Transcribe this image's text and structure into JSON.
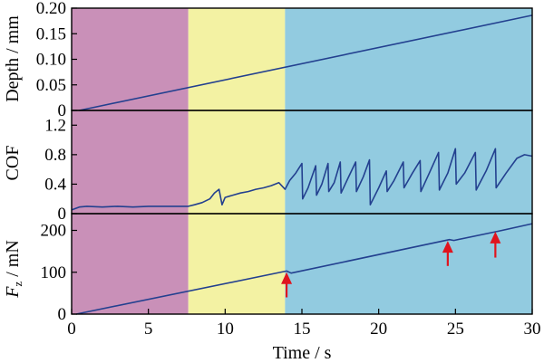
{
  "chart_data": [
    {
      "type": "line",
      "ylabel": "Depth / mm",
      "ylim": [
        0,
        0.2
      ],
      "y_ticks": [
        "0",
        "0.05",
        "0.10",
        "0.15",
        "0.20"
      ],
      "series": [
        {
          "x": [
            0.5,
            30
          ],
          "y": [
            0,
            0.186
          ]
        }
      ]
    },
    {
      "type": "line",
      "ylabel": "COF",
      "ylim": [
        0,
        1.4
      ],
      "y_ticks": [
        "0",
        "0.4",
        "0.8",
        "1.2"
      ],
      "series": [
        {
          "x": [
            0,
            0.5,
            1,
            2,
            3,
            4,
            5,
            6,
            7,
            7.6,
            8,
            8.5,
            9,
            9.3,
            9.6,
            9.8,
            10,
            10.5,
            11,
            11.5,
            12,
            12.5,
            13,
            13.5,
            13.9,
            14.2,
            14.6,
            15.0,
            15.05,
            15.4,
            15.9,
            15.95,
            16.3,
            16.7,
            16.75,
            17.1,
            17.5,
            17.55,
            18.0,
            18.5,
            18.55,
            19.0,
            19.4,
            19.45,
            20.0,
            20.5,
            20.55,
            21.0,
            21.6,
            21.65,
            22.2,
            22.7,
            22.75,
            23.3,
            23.9,
            23.95,
            24.5,
            25.0,
            25.05,
            25.6,
            26.3,
            26.35,
            27.0,
            27.6,
            27.65,
            28.3,
            29.0,
            29.5,
            30
          ],
          "y": [
            0.05,
            0.09,
            0.1,
            0.09,
            0.1,
            0.09,
            0.1,
            0.1,
            0.1,
            0.1,
            0.12,
            0.15,
            0.2,
            0.28,
            0.33,
            0.12,
            0.22,
            0.25,
            0.28,
            0.3,
            0.33,
            0.35,
            0.38,
            0.42,
            0.33,
            0.45,
            0.55,
            0.68,
            0.2,
            0.35,
            0.65,
            0.25,
            0.4,
            0.68,
            0.3,
            0.42,
            0.7,
            0.28,
            0.48,
            0.7,
            0.3,
            0.5,
            0.73,
            0.12,
            0.35,
            0.58,
            0.3,
            0.45,
            0.7,
            0.35,
            0.55,
            0.72,
            0.3,
            0.55,
            0.83,
            0.32,
            0.55,
            0.88,
            0.4,
            0.55,
            0.83,
            0.32,
            0.58,
            0.88,
            0.35,
            0.55,
            0.75,
            0.8,
            0.78
          ]
        }
      ]
    },
    {
      "type": "line",
      "xlabel": "Time / s",
      "ylabel_symbol": "F",
      "ylabel_subscript": "z",
      "ylabel_unit": " / mN",
      "xlim": [
        0,
        30
      ],
      "ylim": [
        0,
        240
      ],
      "x_ticks": [
        "0",
        "5",
        "10",
        "15",
        "20",
        "25",
        "30"
      ],
      "y_ticks": [
        "0",
        "100",
        "200"
      ],
      "series": [
        {
          "x": [
            0.3,
            14,
            14.3,
            24.6,
            24.9,
            27.8,
            30
          ],
          "y": [
            0,
            103,
            98,
            178,
            176,
            198,
            216
          ]
        }
      ]
    }
  ],
  "stages": [
    {
      "x_start": 0,
      "x_end": 7.6,
      "color": "#c990b8"
    },
    {
      "x_start": 7.6,
      "x_end": 13.9,
      "color": "#f3f2a3"
    },
    {
      "x_start": 13.9,
      "x_end": 30,
      "color": "#92cbe0"
    }
  ],
  "arrows": [
    {
      "x": 14.0,
      "y_tip": 100,
      "y_tail": 40
    },
    {
      "x": 24.5,
      "y_tip": 175,
      "y_tail": 115
    },
    {
      "x": 27.6,
      "y_tip": 197,
      "y_tail": 135
    }
  ],
  "colors": {
    "line": "#23408f",
    "arrow": "#e0141e"
  }
}
